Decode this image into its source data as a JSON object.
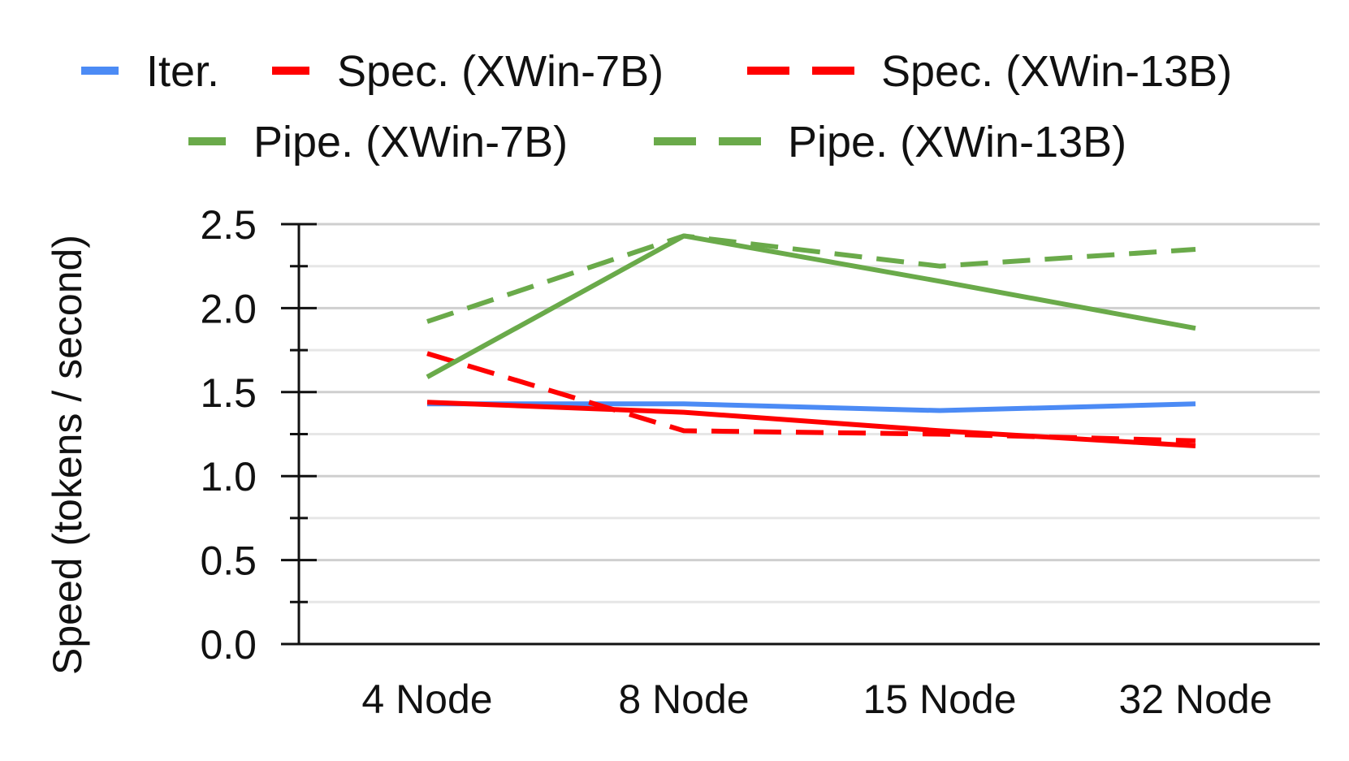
{
  "chart_data": {
    "type": "line",
    "title": "",
    "xlabel": "",
    "ylabel": "Speed (tokens / second)",
    "categories": [
      "4 Node",
      "8 Node",
      "15 Node",
      "32 Node"
    ],
    "ylim": [
      0,
      2.5
    ],
    "yticks": [
      "0.0",
      "0.5",
      "1.0",
      "1.5",
      "2.0",
      "2.5"
    ],
    "grid": true,
    "legend_position": "top",
    "series": [
      {
        "name": "Iter.",
        "values": [
          1.43,
          1.43,
          1.39,
          1.43
        ],
        "color": "#4C8BF5",
        "dash": "solid"
      },
      {
        "name": "Spec. (XWin-7B)",
        "values": [
          1.44,
          1.38,
          1.27,
          1.18
        ],
        "color": "#FF0000",
        "dash": "solid"
      },
      {
        "name": "Spec. (XWin-13B)",
        "values": [
          1.73,
          1.27,
          1.25,
          1.21
        ],
        "color": "#FF0000",
        "dash": "dashed"
      },
      {
        "name": "Pipe. (XWin-7B)",
        "values": [
          1.59,
          2.43,
          2.16,
          1.88
        ],
        "color": "#6AAA4A",
        "dash": "solid"
      },
      {
        "name": "Pipe. (XWin-13B)",
        "values": [
          1.92,
          2.43,
          2.25,
          2.35
        ],
        "color": "#6AAA4A",
        "dash": "dashed"
      }
    ]
  }
}
